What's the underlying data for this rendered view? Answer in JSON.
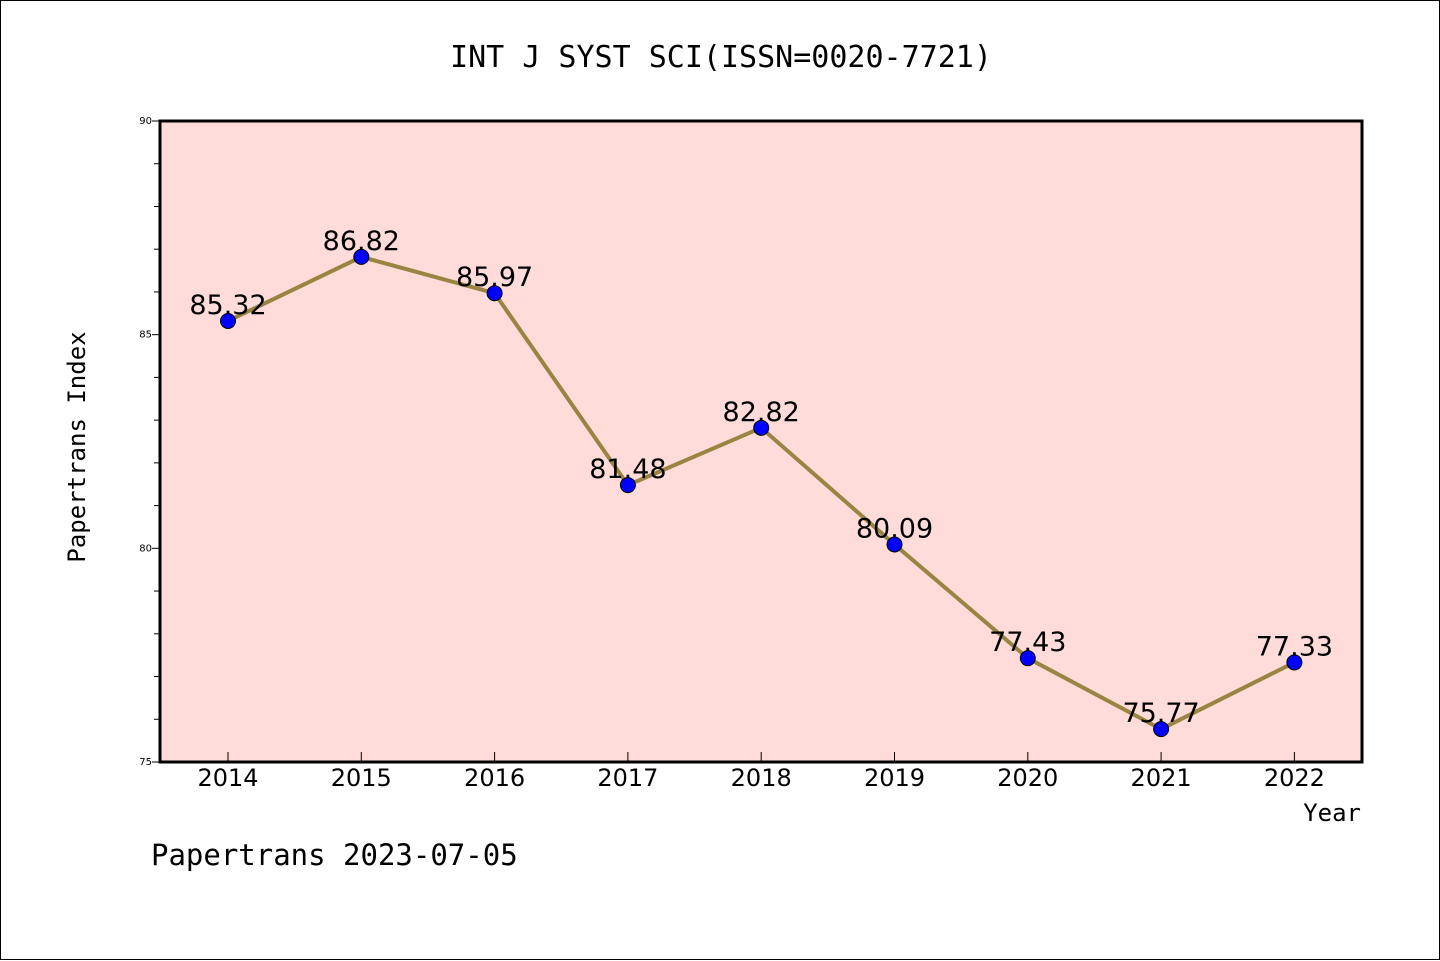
{
  "page": {
    "title": "INT J SYST SCI(ISSN=0020-7721)",
    "footer": "Papertrans 2023-07-05"
  },
  "chart_data": {
    "type": "line",
    "title": "INT J SYST SCI(ISSN=0020-7721)",
    "xlabel": "Year",
    "ylabel": "Papertrans Index",
    "categories": [
      "2014",
      "2015",
      "2016",
      "2017",
      "2018",
      "2019",
      "2020",
      "2021",
      "2022"
    ],
    "series": [
      {
        "values": [
          85.32,
          86.82,
          85.97,
          81.48,
          82.82,
          80.09,
          77.43,
          75.77,
          77.33
        ],
        "labels": [
          "85.32",
          "86.82",
          "85.97",
          "81.48",
          "82.82",
          "80.09",
          "77.43",
          "75.77",
          "77.33"
        ]
      }
    ],
    "ylim": [
      75,
      90
    ],
    "yticks": [
      75,
      80,
      85,
      90
    ],
    "ytick_labels": [
      "75",
      "80",
      "85",
      "90"
    ],
    "grid": false,
    "colors": {
      "plot_background": "#ffdcd9",
      "line": "#9a8441",
      "marker": "#0000ff"
    }
  }
}
